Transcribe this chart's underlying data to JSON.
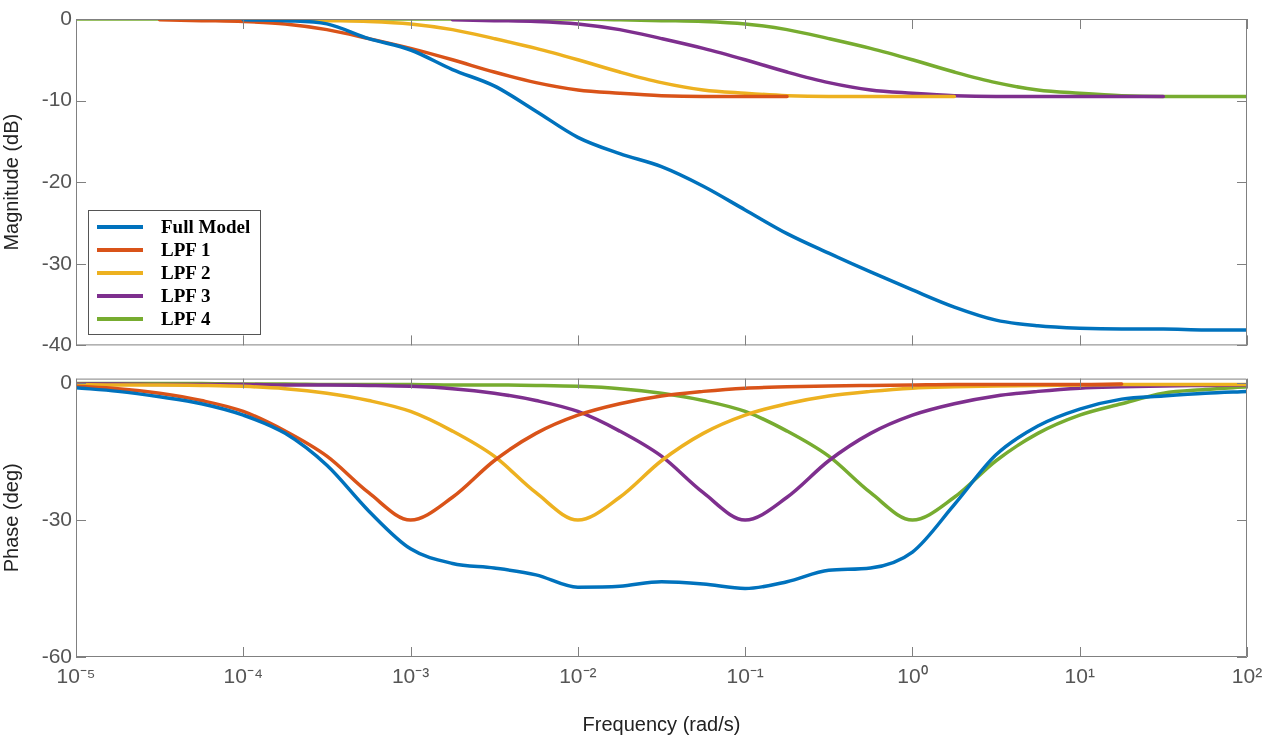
{
  "chart_data": [
    {
      "type": "line",
      "ylabel": "Magnitude (dB)",
      "log": "x",
      "legend": "bottom left",
      "marker": "none",
      "tick_labels": "y",
      "x": [
        1e-05,
        1.78e-05,
        3.16e-05,
        5.62e-05,
        0.0001,
        0.000178,
        0.000316,
        0.000562,
        0.001,
        0.00178,
        0.00316,
        0.00562,
        0.01,
        0.0178,
        0.0316,
        0.0562,
        0.1,
        0.178,
        0.316,
        0.562,
        1,
        1.78,
        3.16,
        5.62,
        10,
        17.8,
        31.6,
        56.2,
        100
      ],
      "xlim": [
        1e-05,
        100
      ],
      "xticks": [
        {
          "value": 1e-05,
          "label": null
        },
        {
          "value": 0.0001,
          "label": null
        },
        {
          "value": 0.001,
          "label": null
        },
        {
          "value": 0.01,
          "label": null
        },
        {
          "value": 0.1,
          "label": null
        },
        {
          "value": 1,
          "label": null
        },
        {
          "value": 10,
          "label": null
        },
        {
          "value": 100,
          "label": null
        }
      ],
      "ylim": [
        -40,
        0
      ],
      "yticks": [
        -40,
        -30,
        -20,
        -10,
        0
      ],
      "series": [
        {
          "name": "Full Model",
          "color": "#0072bd",
          "values": [
            null,
            null,
            null,
            null,
            -0.1,
            -0.2,
            -0.6,
            -2.4,
            -3.8,
            -6.2,
            -8.2,
            -11.3,
            -14.5,
            -16.5,
            -18.1,
            -20.5,
            -23.4,
            -26.3,
            -28.7,
            -31,
            -33.2,
            -35.3,
            -36.9,
            -37.6,
            -37.9,
            -38,
            -38,
            -38.1,
            -38.1
          ]
        },
        {
          "name": "LPF 1",
          "color": "#d95319",
          "values": [
            null,
            null,
            -0.1,
            -0.2,
            -0.3,
            -0.6,
            -1.3,
            -2.4,
            -3.6,
            -5,
            -6.5,
            -7.8,
            -8.7,
            -9.1,
            -9.4,
            -9.5,
            -9.5,
            -9.5,
            null,
            null,
            null,
            null,
            null,
            null,
            null,
            null,
            null,
            null,
            null
          ]
        },
        {
          "name": "LPF 2",
          "color": "#edb120",
          "values": [
            null,
            null,
            null,
            null,
            null,
            -0.1,
            -0.2,
            -0.3,
            -0.6,
            -1.3,
            -2.4,
            -3.6,
            -5,
            -6.5,
            -7.8,
            -8.7,
            -9.1,
            -9.4,
            -9.5,
            -9.5,
            -9.5,
            -9.5,
            null,
            null,
            null,
            null,
            null,
            null,
            null
          ]
        },
        {
          "name": "LPF 3",
          "color": "#7e2f8e",
          "values": [
            null,
            null,
            null,
            null,
            null,
            null,
            null,
            null,
            null,
            -0.1,
            -0.2,
            -0.3,
            -0.6,
            -1.3,
            -2.4,
            -3.6,
            -5,
            -6.5,
            -7.8,
            -8.7,
            -9.1,
            -9.4,
            -9.5,
            -9.5,
            -9.5,
            -9.5,
            -9.5,
            null,
            null
          ]
        },
        {
          "name": "LPF 4",
          "color": "#77ac30",
          "values": [
            0,
            0,
            0,
            0,
            0,
            0,
            0,
            0,
            0,
            0,
            0,
            0,
            0,
            -0.1,
            -0.2,
            -0.3,
            -0.6,
            -1.3,
            -2.4,
            -3.6,
            -5,
            -6.5,
            -7.8,
            -8.7,
            -9.1,
            -9.4,
            -9.5,
            -9.5,
            -9.5
          ]
        }
      ]
    },
    {
      "type": "line",
      "ylabel": "Phase (deg)",
      "xlabel": "Frequency (rad/s)",
      "log": "x",
      "marker": "none",
      "x": [
        1e-05,
        1.78e-05,
        3.16e-05,
        5.62e-05,
        0.0001,
        0.000178,
        0.000316,
        0.000562,
        0.001,
        0.00178,
        0.00316,
        0.00562,
        0.01,
        0.0178,
        0.0316,
        0.0562,
        0.1,
        0.178,
        0.316,
        0.562,
        1,
        1.78,
        3.16,
        5.62,
        10,
        17.8,
        31.6,
        56.2,
        100
      ],
      "xlim": [
        1e-05,
        100
      ],
      "xticks": [
        {
          "value": 1e-05,
          "label": "10⁻⁵"
        },
        {
          "value": 0.0001,
          "label": "10⁻⁴"
        },
        {
          "value": 0.001,
          "label": "10⁻³"
        },
        {
          "value": 0.01,
          "label": "10⁻²"
        },
        {
          "value": 0.1,
          "label": "10⁻¹"
        },
        {
          "value": 1,
          "label": "10⁰"
        },
        {
          "value": 10,
          "label": "10¹"
        },
        {
          "value": 100,
          "label": "10²"
        }
      ],
      "ylim": [
        -60,
        1
      ],
      "yticks": [
        -60,
        -30,
        0
      ],
      "series": [
        {
          "color": "#0072bd",
          "values": [
            -1,
            -1.8,
            -3,
            -4.5,
            -7,
            -11,
            -18,
            -28,
            -36.3,
            -39.5,
            -40.5,
            -42,
            -44.7,
            -44.5,
            -43.5,
            -44,
            -45,
            -43.5,
            -41,
            -40.5,
            -37,
            -26.6,
            -15.7,
            -9.4,
            -5.7,
            -3.5,
            -2.8,
            -2.2,
            -1.8
          ]
        },
        {
          "color": "#d95319",
          "values": [
            -0.7,
            -1.2,
            -2.2,
            -3.8,
            -6.2,
            -10.5,
            -16,
            -24,
            -30,
            -25,
            -17,
            -11,
            -7,
            -4.5,
            -2.8,
            -1.8,
            -1.1,
            -0.8,
            -0.6,
            -0.5,
            -0.4,
            -0.3,
            -0.3,
            -0.3,
            -0.3,
            -0.2,
            null,
            null,
            null
          ]
        },
        {
          "color": "#edb120",
          "values": [
            -0.3,
            -0.4,
            -0.4,
            -0.5,
            -0.7,
            -1.2,
            -2.2,
            -3.8,
            -6.2,
            -10.5,
            -16,
            -24,
            -30,
            -25,
            -17,
            -11,
            -7,
            -4.5,
            -2.8,
            -1.8,
            -1.1,
            -0.8,
            -0.6,
            -0.5,
            -0.4,
            -0.3,
            -0.3,
            -0.3,
            -0.3
          ]
        },
        {
          "color": "#7e2f8e",
          "values": [
            -0.2,
            -0.2,
            -0.3,
            -0.3,
            -0.3,
            -0.4,
            -0.4,
            -0.5,
            -0.7,
            -1.2,
            -2.2,
            -3.8,
            -6.2,
            -10.5,
            -16,
            -24,
            -30,
            -25,
            -17,
            -11,
            -7,
            -4.5,
            -2.8,
            -1.8,
            -1.1,
            -0.8,
            -0.6,
            -0.5,
            -0.4
          ]
        },
        {
          "color": "#77ac30",
          "values": [
            -0.1,
            -0.1,
            -0.1,
            -0.1,
            -0.2,
            -0.2,
            -0.3,
            -0.3,
            -0.3,
            -0.4,
            -0.4,
            -0.5,
            -0.7,
            -1.2,
            -2.2,
            -3.8,
            -6.2,
            -10.5,
            -16,
            -24,
            -30,
            -25,
            -17,
            -11,
            -7,
            -4.5,
            -2.2,
            -1.4,
            -0.8
          ]
        }
      ]
    }
  ]
}
